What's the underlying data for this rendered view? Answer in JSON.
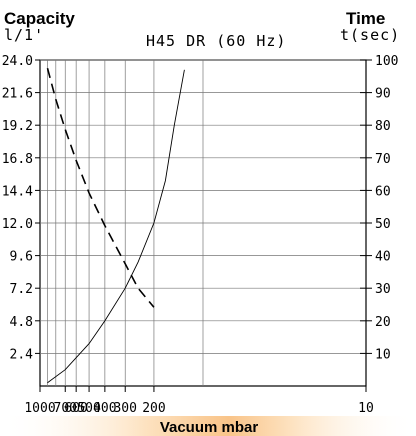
{
  "chart_data": {
    "type": "line",
    "title": "H45 DR (60 Hz)",
    "xlabel": "Vacuum mbar",
    "left_axis": {
      "heading": "Capacity",
      "unit": "l/1'",
      "ticks": [
        "2.4",
        "4.8",
        "7.2",
        "9.6",
        "12.0",
        "14.4",
        "16.8",
        "19.2",
        "21.6",
        "24.0"
      ],
      "ylim": [
        0,
        24
      ]
    },
    "right_axis": {
      "heading": "Time",
      "unit": "t(sec)",
      "ticks": [
        "10",
        "20",
        "30",
        "40",
        "50",
        "60",
        "70",
        "80",
        "90",
        "100"
      ],
      "ylim": [
        0,
        100
      ]
    },
    "x_scale": "log-reversed",
    "x_ticks": [
      "1000",
      "700",
      "600",
      "500",
      "400",
      "300",
      "200",
      "10"
    ],
    "x_tick_values": [
      1000,
      700,
      600,
      500,
      400,
      300,
      200,
      10
    ],
    "xlim": [
      1000,
      10
    ],
    "grid": true,
    "series": [
      {
        "axis": "left",
        "style": "dashed",
        "x": [
          900,
          800,
          700,
          600,
          500,
          400,
          300,
          250,
          200
        ],
        "y": [
          23.4,
          21.1,
          18.9,
          16.6,
          14.2,
          11.8,
          9.0,
          7.2,
          5.8
        ]
      },
      {
        "axis": "right",
        "style": "solid",
        "x": [
          900,
          700,
          500,
          400,
          300,
          250,
          200,
          170,
          150,
          130
        ],
        "y": [
          1,
          5,
          13,
          20,
          30,
          38,
          50,
          63,
          80,
          97
        ]
      }
    ]
  }
}
